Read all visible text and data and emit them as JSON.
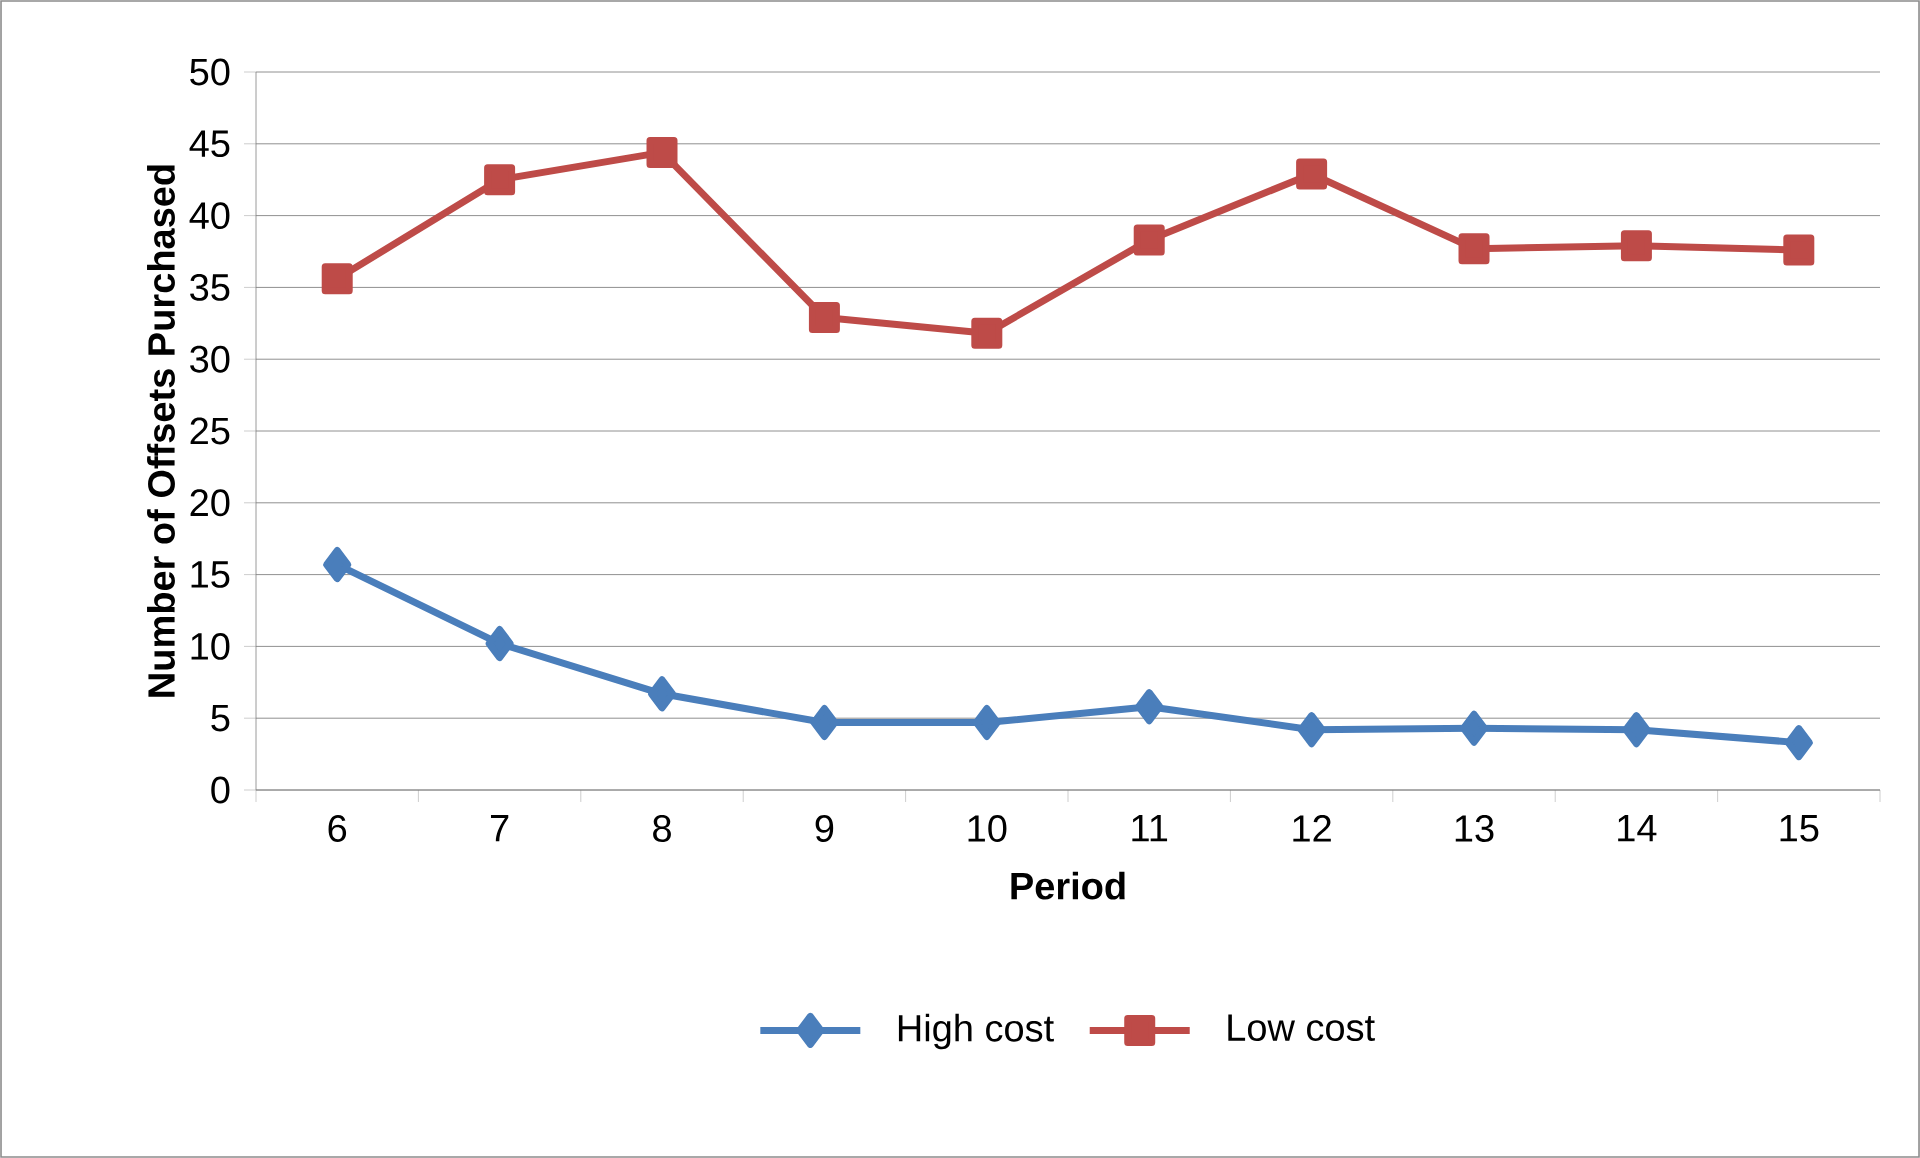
{
  "chart_data": {
    "type": "line",
    "xlabel": "Period",
    "ylabel": "Number of Offsets Purchased",
    "categories": [
      "6",
      "7",
      "8",
      "9",
      "10",
      "11",
      "12",
      "13",
      "14",
      "15"
    ],
    "series": [
      {
        "name": "High cost",
        "color": "#4a7ebb",
        "marker": "diamond",
        "values": [
          15.7,
          10.2,
          6.7,
          4.7,
          4.7,
          5.8,
          4.2,
          4.3,
          4.2,
          3.3
        ]
      },
      {
        "name": "Low cost",
        "color": "#be4b48",
        "marker": "square",
        "values": [
          35.6,
          42.5,
          44.4,
          32.9,
          31.8,
          38.3,
          42.9,
          37.7,
          37.9,
          37.6
        ]
      }
    ],
    "ylim": [
      0,
      50
    ],
    "yticks": [
      0,
      5,
      10,
      15,
      20,
      25,
      30,
      35,
      40,
      45,
      50
    ],
    "grid": "y",
    "legend": "bottom",
    "line_style": "solid"
  }
}
